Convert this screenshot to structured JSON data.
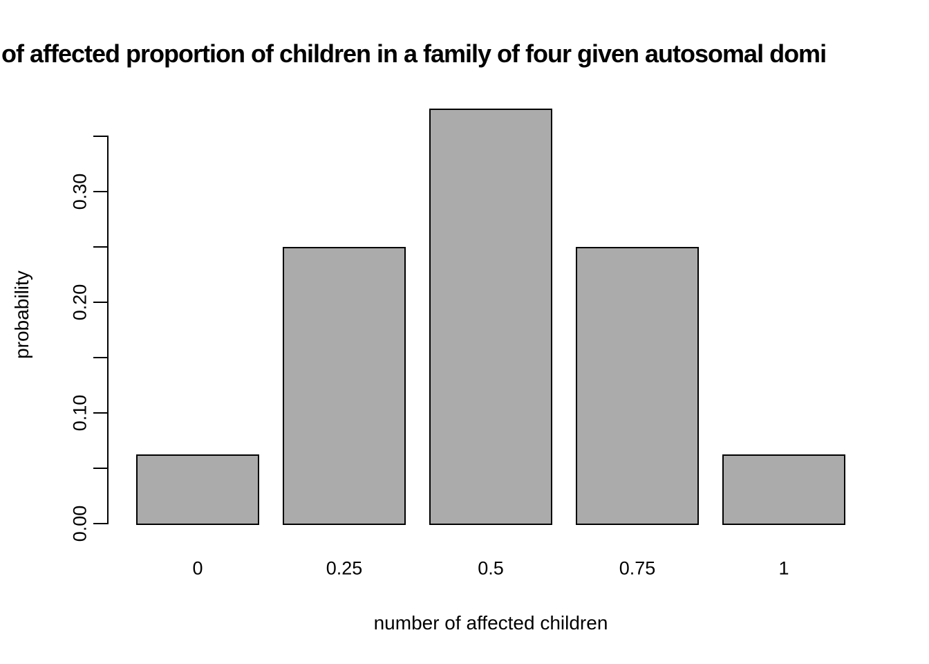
{
  "chart_data": {
    "type": "bar",
    "title": "of affected proportion of children in a family of four given autosomal domi",
    "title_clipped": true,
    "xlabel": "number of affected children",
    "ylabel": "probability",
    "categories": [
      "0",
      "0.25",
      "0.5",
      "0.75",
      "1"
    ],
    "values": [
      0.0625,
      0.25,
      0.375,
      0.25,
      0.0625
    ],
    "y_axis": {
      "min": 0,
      "max_tick": 0.35,
      "minor_tick_step": 0.05,
      "labeled_ticks": [
        {
          "value": 0.0,
          "label": "0.00"
        },
        {
          "value": 0.1,
          "label": "0.10"
        },
        {
          "value": 0.2,
          "label": "0.20"
        },
        {
          "value": 0.3,
          "label": "0.30"
        }
      ]
    },
    "grid": false,
    "legend": null,
    "colors": {
      "bar_fill": "#ABABAB",
      "bar_border": "#000000",
      "axis": "#000000",
      "text": "#000000",
      "background": "#ffffff"
    }
  }
}
